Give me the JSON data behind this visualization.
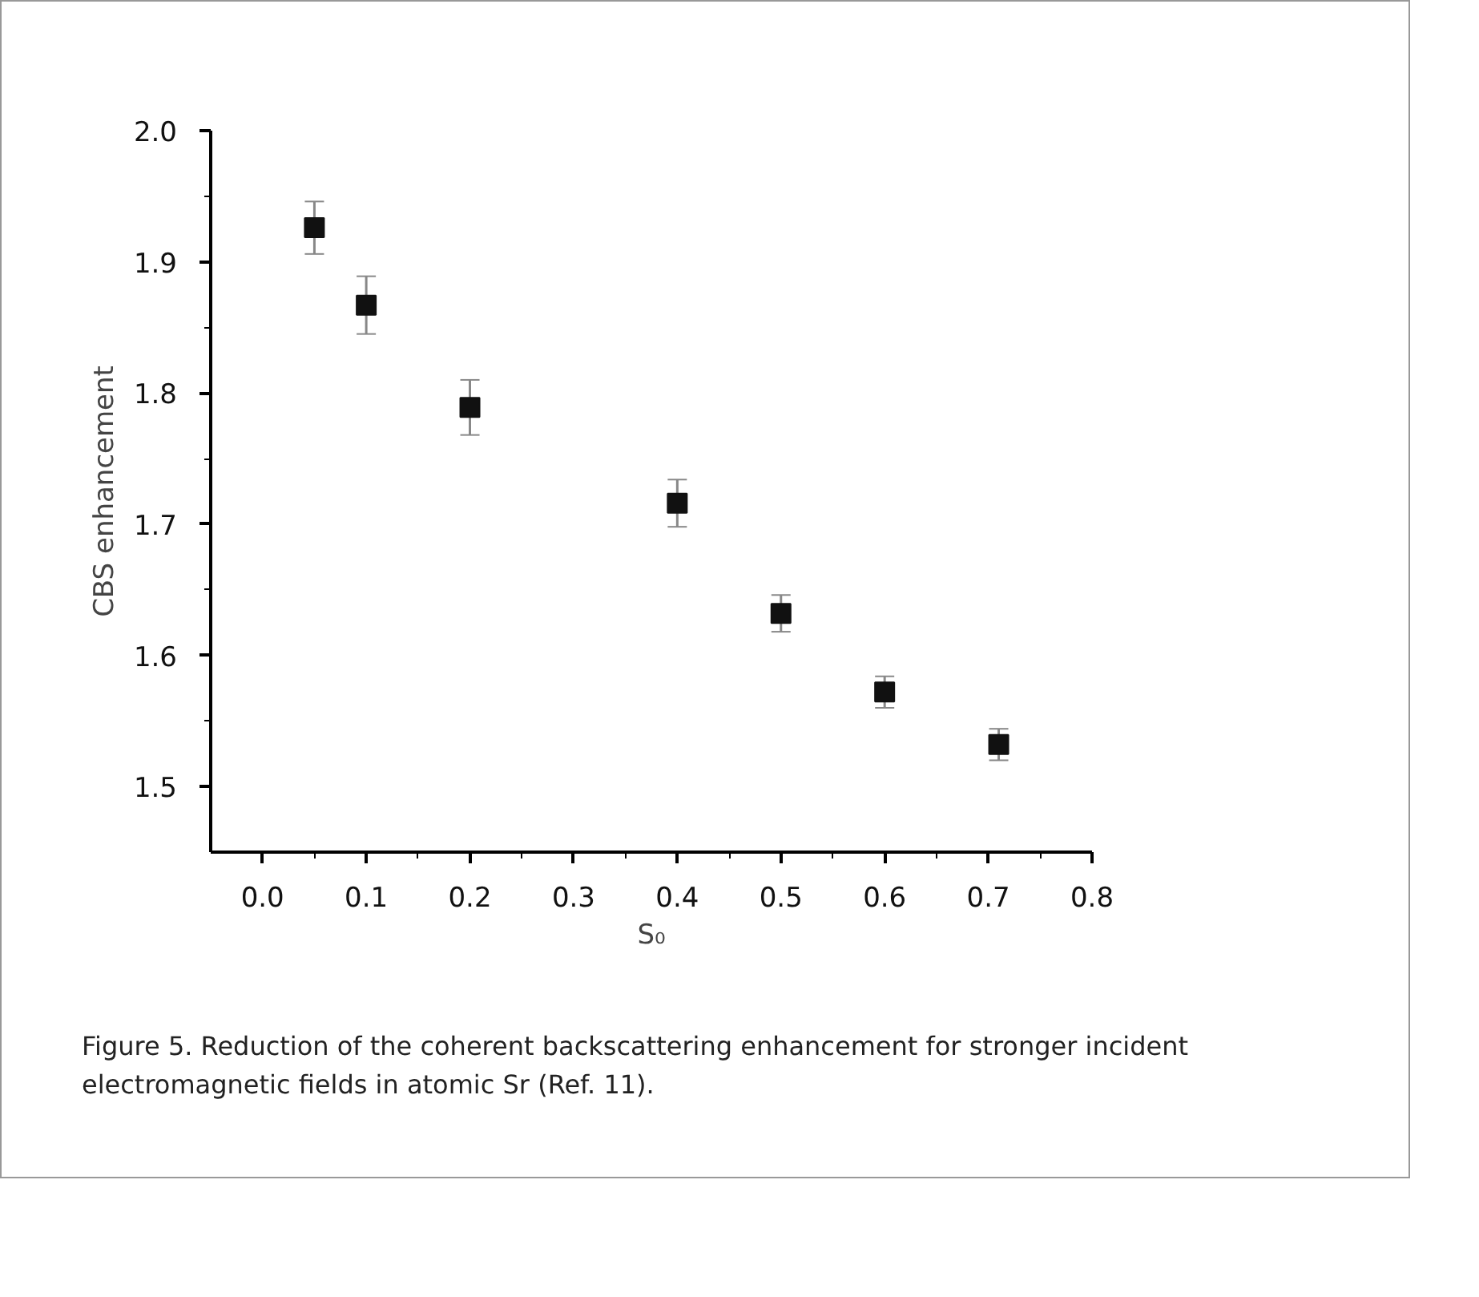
{
  "chart_data": {
    "type": "scatter",
    "xlabel": "S₀",
    "ylabel": "CBS enhancement",
    "x": [
      0.05,
      0.1,
      0.2,
      0.4,
      0.5,
      0.6,
      0.71
    ],
    "values": [
      1.926,
      1.867,
      1.789,
      1.716,
      1.632,
      1.572,
      1.532
    ],
    "errors": [
      0.02,
      0.022,
      0.021,
      0.018,
      0.014,
      0.012,
      0.012
    ],
    "color": "#111111",
    "marker": "square",
    "grid": false,
    "xlim": [
      -0.05,
      0.8
    ],
    "xticks": [
      {
        "value": 0,
        "label": "0.0"
      },
      0.1,
      0.2,
      0.3,
      0.4,
      0.5,
      0.6,
      0.7,
      0.8
    ],
    "ylim": [
      1.45,
      2.0
    ],
    "yticks": [
      1.5,
      1.6,
      1.7,
      1.8,
      1.9,
      {
        "value": 2,
        "label": "2.0"
      }
    ],
    "annotations": [
      "Figure 5. Reduction of the coherent backscattering enhancement for stronger incident electromagnetic fields in atomic Sr (Ref. 11)."
    ]
  }
}
